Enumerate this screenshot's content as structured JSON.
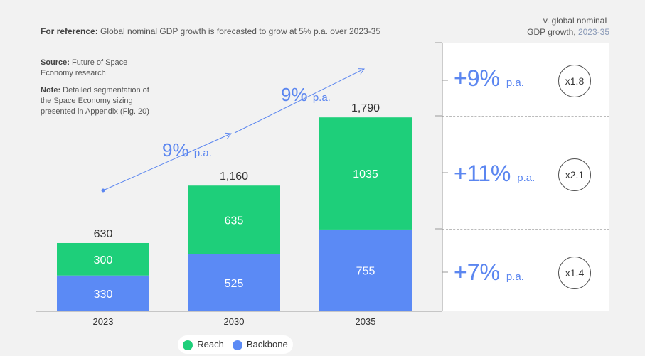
{
  "reference": {
    "label": "For reference:",
    "text": " Global nominal GDP growth is forecasted to grow at 5% p.a. over 2023-35"
  },
  "source": {
    "label": "Source:",
    "text": " Future of Space Economy research"
  },
  "note": {
    "label": "Note:",
    "text": " Detailed segmentation of the Space Economy sizing presented in Appendix (Fig. 20)"
  },
  "right_header": {
    "line1": "v. global nominaL",
    "line2": "GDP growth,",
    "years": "2023-35"
  },
  "growth_rows": [
    {
      "rate": "+9%",
      "unit": "p.a.",
      "multiple": "x1.8"
    },
    {
      "rate": "+11%",
      "unit": "p.a.",
      "multiple": "x2.1"
    },
    {
      "rate": "+7%",
      "unit": "p.a.",
      "multiple": "x1.4"
    }
  ],
  "colors": {
    "reach": "#1ecf7a",
    "backbone": "#5b8af5",
    "arrow": "#5b86f0"
  },
  "chart_data": {
    "type": "bar",
    "stacked": true,
    "categories": [
      "2023",
      "2030",
      "2035"
    ],
    "series": [
      {
        "name": "Backbone",
        "values": [
          330,
          525,
          755
        ]
      },
      {
        "name": "Reach",
        "values": [
          300,
          635,
          1035
        ]
      }
    ],
    "totals": [
      "630",
      "1,160",
      "1,790"
    ],
    "annotations": [
      {
        "text": "9%",
        "unit": "p.a.",
        "from": "2023",
        "to": "2030"
      },
      {
        "text": "9%",
        "unit": "p.a.",
        "from": "2030",
        "to": "2035"
      }
    ],
    "legend": [
      "Reach",
      "Backbone"
    ],
    "legend_position": "bottom"
  }
}
